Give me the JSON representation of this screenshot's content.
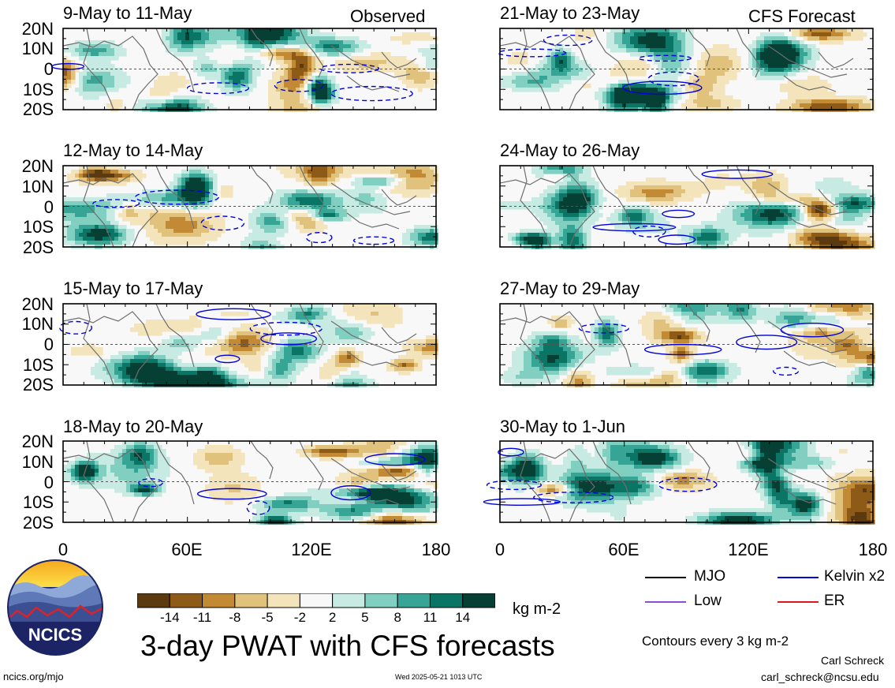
{
  "header": {
    "observed_label": "Observed",
    "forecast_label": "CFS Forecast"
  },
  "chart_data": {
    "type": "heatmap",
    "title": "3-day PWAT with CFS forecasts",
    "units": "kg m-2",
    "lat_ticks": [
      "20N",
      "10N",
      "0",
      "10S",
      "20S"
    ],
    "lon_ticks": [
      "0",
      "60E",
      "120E",
      "180"
    ],
    "x_range": [
      0,
      180
    ],
    "y_range": [
      -20,
      20
    ],
    "colorbar": {
      "levels": [
        "-14",
        "-11",
        "-8",
        "-5",
        "-2",
        "2",
        "5",
        "8",
        "11",
        "14"
      ],
      "colors": [
        "#5c3a10",
        "#8e5a17",
        "#c38a36",
        "#e0c27c",
        "#f4e4bc",
        "#f8f8f8",
        "#c7ebe2",
        "#80cfc0",
        "#37a596",
        "#0b7565",
        "#063f33"
      ]
    },
    "panels": [
      {
        "period": "9-May to 11-May",
        "kind": "Observed"
      },
      {
        "period": "12-May to 14-May",
        "kind": "Observed"
      },
      {
        "period": "15-May to 17-May",
        "kind": "Observed"
      },
      {
        "period": "18-May to 20-May",
        "kind": "Observed"
      },
      {
        "period": "21-May to 23-May",
        "kind": "CFS Forecast"
      },
      {
        "period": "24-May to 26-May",
        "kind": "CFS Forecast"
      },
      {
        "period": "27-May to 29-May",
        "kind": "CFS Forecast"
      },
      {
        "period": "30-May to 1-Jun",
        "kind": "CFS Forecast"
      }
    ],
    "legend": [
      {
        "label": "MJO",
        "color": "#000000"
      },
      {
        "label": "Kelvin x2",
        "color": "#0000dd"
      },
      {
        "label": "Low",
        "color": "#8a4fd6"
      },
      {
        "label": "ER",
        "color": "#e0161b"
      }
    ],
    "contour_note": "Contours every 3 kg m-2"
  },
  "logo": {
    "text": "NCICS"
  },
  "footer": {
    "site": "ncics.org/mjo",
    "timestamp": "Wed 2025-05-21 1013 UTC",
    "author": "Carl Schreck",
    "email": "carl_schreck@ncsu.edu"
  }
}
